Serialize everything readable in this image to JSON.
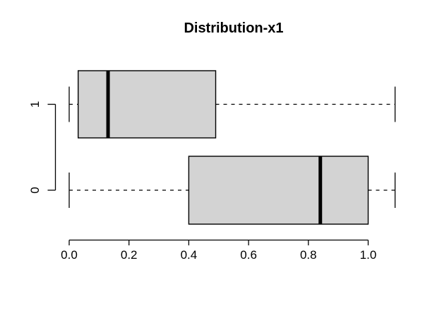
{
  "chart_data": {
    "type": "boxplot",
    "orientation": "horizontal",
    "title": "Distribution-x1",
    "categories": [
      "1",
      "0"
    ],
    "groups": [
      {
        "label": "1",
        "whisker_low": 0.0,
        "q1": 0.03,
        "median": 0.13,
        "q3": 0.49,
        "whisker_high": 1.09
      },
      {
        "label": "0",
        "whisker_low": 0.0,
        "q1": 0.4,
        "median": 0.84,
        "q3": 1.0,
        "whisker_high": 1.09
      }
    ],
    "x_ticks": [
      0.0,
      0.2,
      0.4,
      0.6,
      0.8,
      1.0
    ],
    "x_tick_labels": [
      "0.0",
      "0.2",
      "0.4",
      "0.6",
      "0.8",
      "1.0"
    ],
    "xlim": [
      0.0,
      1.0
    ],
    "xlabel": "",
    "ylabel": "",
    "legend": "none",
    "grid": "off",
    "whisker_style": "dashed",
    "box_fill": "#d3d3d3",
    "line_color": "#000000",
    "background": "#ffffff"
  }
}
